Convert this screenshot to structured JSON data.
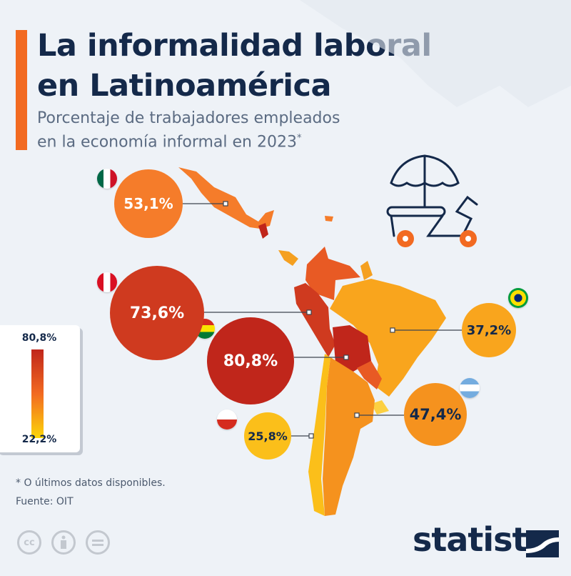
{
  "header": {
    "title_line1": "La informalidad laboral",
    "title_line2": "en Latinoamérica",
    "subtitle_line1": "Porcentaje de trabajadores empleados",
    "subtitle_line2": "en la economía informal en 2023",
    "subtitle_mark": "*"
  },
  "countries": [
    {
      "name": "Mexico",
      "flag": "mexico-flag",
      "value": "53,1%",
      "color": "#f57c2a",
      "text_color": "#ffffff"
    },
    {
      "name": "Peru",
      "flag": "peru-flag",
      "value": "73,6%",
      "color": "#cf3a1f",
      "text_color": "#ffffff"
    },
    {
      "name": "Bolivia",
      "flag": "bolivia-flag",
      "value": "80,8%",
      "color": "#c0261b",
      "text_color": "#ffffff"
    },
    {
      "name": "Brazil",
      "flag": "brazil-flag",
      "value": "37,2%",
      "color": "#f9a51d",
      "text_color": "#14294a"
    },
    {
      "name": "Argentina",
      "flag": "argentina-flag",
      "value": "47,4%",
      "color": "#f5921e",
      "text_color": "#14294a"
    },
    {
      "name": "Chile",
      "flag": "chile-flag",
      "value": "25,8%",
      "color": "#fbbf1a",
      "text_color": "#14294a"
    }
  ],
  "legend": {
    "max": "80,8%",
    "min": "22,2%",
    "colors": [
      "#c0261b",
      "#f26a21",
      "#fcd60a"
    ]
  },
  "notes": {
    "footnote": "* O últimos datos disponibles.",
    "source": "Fuente: OIT"
  },
  "license_icons": [
    "cc-icon",
    "attribution-icon",
    "no-derivatives-icon"
  ],
  "cc_label": "cc",
  "brand": {
    "logo": "statista",
    "accent": "#f26a21"
  }
}
